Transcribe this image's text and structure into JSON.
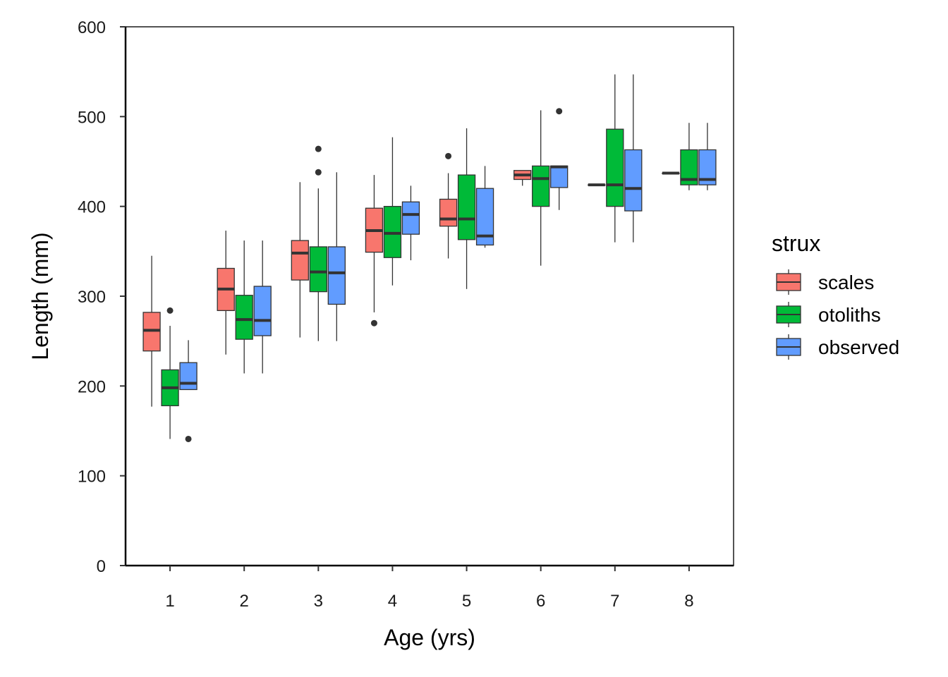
{
  "chart_data": {
    "type": "boxplot",
    "xlabel": "Age (yrs)",
    "ylabel": "Length (mm)",
    "ylim": [
      0,
      600
    ],
    "yticks": [
      0,
      100,
      200,
      300,
      400,
      500,
      600
    ],
    "categories": [
      "1",
      "2",
      "3",
      "4",
      "5",
      "6",
      "7",
      "8"
    ],
    "legend": {
      "title": "strux",
      "position": "right"
    },
    "grid": false,
    "series": [
      {
        "name": "scales",
        "color": "#F8766D",
        "boxes": [
          {
            "whisker_low": 177,
            "q1": 239,
            "median": 262,
            "q3": 282,
            "whisker_high": 345,
            "outliers": []
          },
          {
            "whisker_low": 235,
            "q1": 284,
            "median": 308,
            "q3": 331,
            "whisker_high": 373,
            "outliers": []
          },
          {
            "whisker_low": 254,
            "q1": 318,
            "median": 348,
            "q3": 362,
            "whisker_high": 427,
            "outliers": []
          },
          {
            "whisker_low": 282,
            "q1": 349,
            "median": 373,
            "q3": 398,
            "whisker_high": 435,
            "outliers": [
              270
            ]
          },
          {
            "whisker_low": 342,
            "q1": 378,
            "median": 386,
            "q3": 408,
            "whisker_high": 437,
            "outliers": [
              456
            ]
          },
          {
            "whisker_low": 423,
            "q1": 430,
            "median": 435,
            "q3": 440,
            "whisker_high": 440,
            "outliers": []
          },
          {
            "whisker_low": 424,
            "q1": 424,
            "median": 424,
            "q3": 424,
            "whisker_high": 424,
            "outliers": []
          },
          {
            "whisker_low": 437,
            "q1": 437,
            "median": 437,
            "q3": 437,
            "whisker_high": 437,
            "outliers": []
          }
        ]
      },
      {
        "name": "otoliths",
        "color": "#00BA38",
        "boxes": [
          {
            "whisker_low": 141,
            "q1": 178,
            "median": 198,
            "q3": 218,
            "whisker_high": 267,
            "outliers": [
              284
            ]
          },
          {
            "whisker_low": 214,
            "q1": 252,
            "median": 274,
            "q3": 301,
            "whisker_high": 362,
            "outliers": []
          },
          {
            "whisker_low": 250,
            "q1": 305,
            "median": 327,
            "q3": 355,
            "whisker_high": 420,
            "outliers": [
              438,
              464
            ]
          },
          {
            "whisker_low": 312,
            "q1": 343,
            "median": 370,
            "q3": 400,
            "whisker_high": 477,
            "outliers": []
          },
          {
            "whisker_low": 308,
            "q1": 363,
            "median": 386,
            "q3": 435,
            "whisker_high": 487,
            "outliers": []
          },
          {
            "whisker_low": 334,
            "q1": 400,
            "median": 431,
            "q3": 445,
            "whisker_high": 507,
            "outliers": []
          },
          {
            "whisker_low": 360,
            "q1": 400,
            "median": 424,
            "q3": 486,
            "whisker_high": 547,
            "outliers": []
          },
          {
            "whisker_low": 418,
            "q1": 424,
            "median": 430,
            "q3": 463,
            "whisker_high": 493,
            "outliers": []
          }
        ]
      },
      {
        "name": "observed",
        "color": "#619CFF",
        "boxes": [
          {
            "whisker_low": 196,
            "q1": 196,
            "median": 203,
            "q3": 226,
            "whisker_high": 251,
            "outliers": [
              141
            ]
          },
          {
            "whisker_low": 214,
            "q1": 256,
            "median": 273,
            "q3": 311,
            "whisker_high": 362,
            "outliers": []
          },
          {
            "whisker_low": 250,
            "q1": 291,
            "median": 326,
            "q3": 355,
            "whisker_high": 438,
            "outliers": []
          },
          {
            "whisker_low": 340,
            "q1": 369,
            "median": 391,
            "q3": 405,
            "whisker_high": 423,
            "outliers": []
          },
          {
            "whisker_low": 354,
            "q1": 357,
            "median": 367,
            "q3": 420,
            "whisker_high": 445,
            "outliers": []
          },
          {
            "whisker_low": 396,
            "q1": 421,
            "median": 444,
            "q3": 445,
            "whisker_high": 445,
            "outliers": [
              506
            ]
          },
          {
            "whisker_low": 360,
            "q1": 395,
            "median": 420,
            "q3": 463,
            "whisker_high": 547,
            "outliers": []
          },
          {
            "whisker_low": 418,
            "q1": 424,
            "median": 430,
            "q3": 463,
            "whisker_high": 493,
            "outliers": []
          }
        ]
      }
    ]
  }
}
